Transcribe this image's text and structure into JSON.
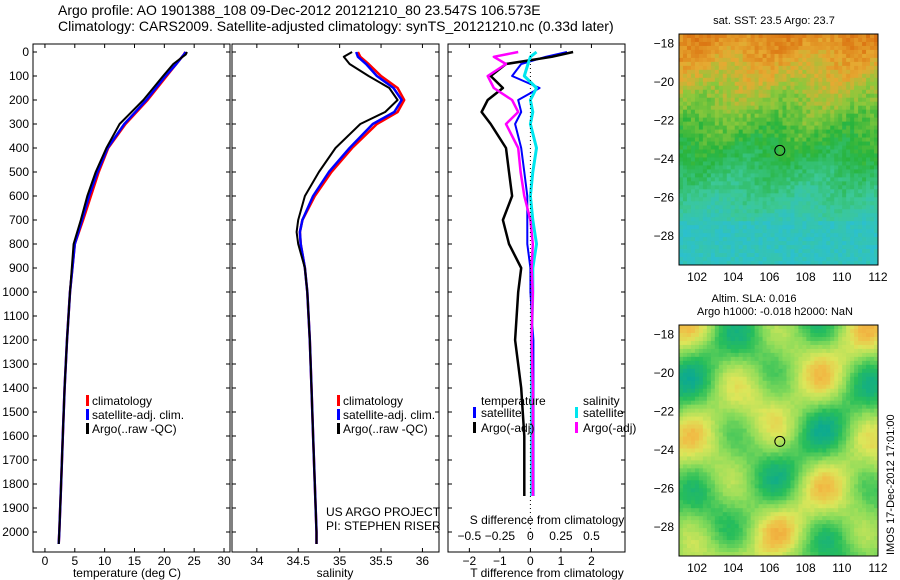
{
  "header": {
    "title_line1": "Argo profile: AO 1901388_108 09-Dec-2012 20121210_80 23.547S 106.573E",
    "title_line2": "Climatology: CARS2009. Satellite-adjusted climatology: synTS_20121210.nc (0.33d later)"
  },
  "credits": {
    "project": "US ARGO PROJECT",
    "pi": "PI: STEPHEN RISER"
  },
  "side_label": "IMOS 17-Dec-2012 17:01:00",
  "colors": {
    "climatology": "#ff0000",
    "satellite": "#0000ff",
    "argo": "#000000",
    "cyan": "#00e5ee",
    "magenta": "#ff00ff"
  },
  "legends": {
    "temp": [
      "climatology",
      "satellite-adj. clim.",
      "Argo(..raw -QC)"
    ],
    "sal": [
      "climatology",
      "satellite-adj. clim.",
      "Argo(..raw -QC)"
    ],
    "diff": {
      "temperature": "temperature",
      "salinity": "salinity",
      "t_sat": "satellite",
      "t_argo": "Argo(-adj)",
      "s_sat": "satellite",
      "s_argo": "Argo(-adj)"
    }
  },
  "maps": {
    "sst_title": "sat. SST: 23.5 Argo: 23.7",
    "sla_title1": "Altim. SLA: 0.016",
    "sla_title2": "Argo h1000: -0.018 h2000: NaN"
  },
  "chart_data": [
    {
      "type": "line",
      "name": "temperature profile",
      "xlabel": "temperature (deg C)",
      "ylabel": "",
      "xlim": [
        -2,
        31
      ],
      "ylim": [
        2100,
        0
      ],
      "xticks": [
        0,
        5,
        10,
        15,
        20,
        25,
        30
      ],
      "yticks": [
        0,
        100,
        200,
        300,
        400,
        500,
        600,
        700,
        800,
        900,
        1000,
        1100,
        1200,
        1300,
        1400,
        1500,
        1600,
        1700,
        1800,
        1900,
        2000
      ],
      "depth": [
        0,
        10,
        50,
        100,
        200,
        300,
        400,
        500,
        600,
        700,
        800,
        900,
        1000,
        1200,
        1400,
        1600,
        1800,
        2000,
        2050
      ],
      "series": [
        {
          "name": "climatology",
          "values": [
            23.5,
            23.3,
            22.0,
            20.4,
            17.2,
            13.5,
            10.6,
            9.0,
            7.7,
            6.4,
            5.0,
            4.6,
            4.2,
            3.7,
            3.3,
            3.0,
            2.7,
            2.4,
            2.3
          ]
        },
        {
          "name": "satellite-adj. clim.",
          "values": [
            23.6,
            23.3,
            22.0,
            20.2,
            17.0,
            13.3,
            10.5,
            8.8,
            7.4,
            6.2,
            5.0,
            4.6,
            4.2,
            3.7,
            3.3,
            3.0,
            2.7,
            2.4,
            2.3
          ]
        },
        {
          "name": "Argo(..raw -QC)",
          "values": [
            23.8,
            23.6,
            21.5,
            19.8,
            16.5,
            12.5,
            10.3,
            8.5,
            7.1,
            6.0,
            4.8,
            4.5,
            4.2,
            3.7,
            3.3,
            3.0,
            2.7,
            2.4,
            2.3
          ]
        }
      ]
    },
    {
      "type": "line",
      "name": "salinity profile",
      "xlabel": "salinity",
      "xlim": [
        33.7,
        36.2
      ],
      "ylim": [
        2100,
        0
      ],
      "xticks": [
        34,
        34.5,
        35,
        35.5,
        36
      ],
      "depth": [
        0,
        20,
        50,
        100,
        150,
        200,
        250,
        300,
        400,
        500,
        600,
        700,
        750,
        800,
        900,
        1000,
        1200,
        1400,
        1600,
        1800,
        2000,
        2050
      ],
      "series": [
        {
          "name": "climatology",
          "values": [
            35.22,
            35.25,
            35.35,
            35.5,
            35.7,
            35.78,
            35.7,
            35.45,
            35.15,
            34.9,
            34.7,
            34.55,
            34.52,
            34.53,
            34.58,
            34.61,
            34.64,
            34.66,
            34.68,
            34.7,
            34.72,
            34.72
          ]
        },
        {
          "name": "satellite-adj. clim.",
          "values": [
            35.2,
            35.22,
            35.32,
            35.45,
            35.65,
            35.75,
            35.66,
            35.4,
            35.12,
            34.87,
            34.68,
            34.55,
            34.52,
            34.53,
            34.58,
            34.61,
            34.64,
            34.66,
            34.68,
            34.7,
            34.72,
            34.72
          ]
        },
        {
          "name": "Argo(..raw -QC)",
          "values": [
            35.15,
            35.05,
            35.12,
            35.35,
            35.6,
            35.7,
            35.55,
            35.25,
            34.95,
            34.75,
            34.58,
            34.5,
            34.48,
            34.5,
            34.58,
            34.61,
            34.64,
            34.66,
            34.68,
            34.7,
            34.72,
            34.72
          ]
        }
      ]
    },
    {
      "type": "line",
      "name": "difference from climatology",
      "xlabel": "T difference from climatology",
      "xlabel2": "S difference from climatology",
      "xlim": [
        -2.7,
        3.1
      ],
      "ylim": [
        2100,
        0
      ],
      "xticks": [
        -2,
        -1,
        0,
        1,
        2
      ],
      "xticks_s": [
        "-0.5",
        "-0.25",
        "0",
        "0.25",
        "0.5"
      ],
      "depth": [
        0,
        20,
        50,
        100,
        150,
        200,
        250,
        300,
        400,
        500,
        600,
        700,
        800,
        900,
        1000,
        1200,
        1400,
        1600,
        1800,
        1850
      ],
      "series": [
        {
          "name": "temperature satellite",
          "values": [
            1.2,
            0.5,
            -0.3,
            -0.6,
            0.3,
            -0.4,
            -0.3,
            -0.5,
            -0.3,
            -0.2,
            -0.1,
            -0.1,
            -0.1,
            0.0,
            0.0,
            0.1,
            0.1,
            0.1,
            0.1,
            0.1
          ]
        },
        {
          "name": "temperature Argo(-adj)",
          "values": [
            1.4,
            0.7,
            -0.8,
            -1.3,
            -0.9,
            -1.4,
            -1.6,
            -1.3,
            -0.8,
            -0.7,
            -0.6,
            -0.9,
            -0.7,
            -0.3,
            -0.4,
            -0.5,
            -0.3,
            -0.2,
            -0.2,
            -0.2
          ]
        },
        {
          "name": "salinity satellite",
          "values": [
            0.05,
            0.0,
            -0.02,
            -0.05,
            0.05,
            0.0,
            0.02,
            0.0,
            0.05,
            0.02,
            0.0,
            0.02,
            0.05,
            0.02,
            0.02,
            0.01,
            0.01,
            0.01,
            0.01,
            0.01
          ]
        },
        {
          "name": "salinity Argo(-adj)",
          "values": [
            -0.1,
            -0.3,
            -0.2,
            -0.35,
            -0.3,
            -0.15,
            -0.1,
            -0.2,
            -0.1,
            -0.08,
            -0.05,
            0.0,
            0.02,
            0.01,
            0.02,
            0.01,
            0.02,
            0.02,
            0.02,
            0.02
          ]
        }
      ]
    },
    {
      "type": "heatmap",
      "name": "sat. SST map",
      "xlim": [
        101,
        112
      ],
      "ylim": [
        -29.5,
        -17.5
      ],
      "xticks": [
        102,
        104,
        106,
        108,
        110,
        112
      ],
      "yticks": [
        -18,
        -20,
        -22,
        -24,
        -26,
        -28
      ],
      "marker": {
        "lon": 106.573,
        "lat": -23.547
      }
    },
    {
      "type": "heatmap",
      "name": "Altim. SLA map",
      "xlim": [
        101,
        112
      ],
      "ylim": [
        -29.5,
        -17.5
      ],
      "xticks": [
        102,
        104,
        106,
        108,
        110,
        112
      ],
      "yticks": [
        -18,
        -20,
        -22,
        -24,
        -26,
        -28
      ],
      "marker": {
        "lon": 106.573,
        "lat": -23.547
      }
    }
  ]
}
